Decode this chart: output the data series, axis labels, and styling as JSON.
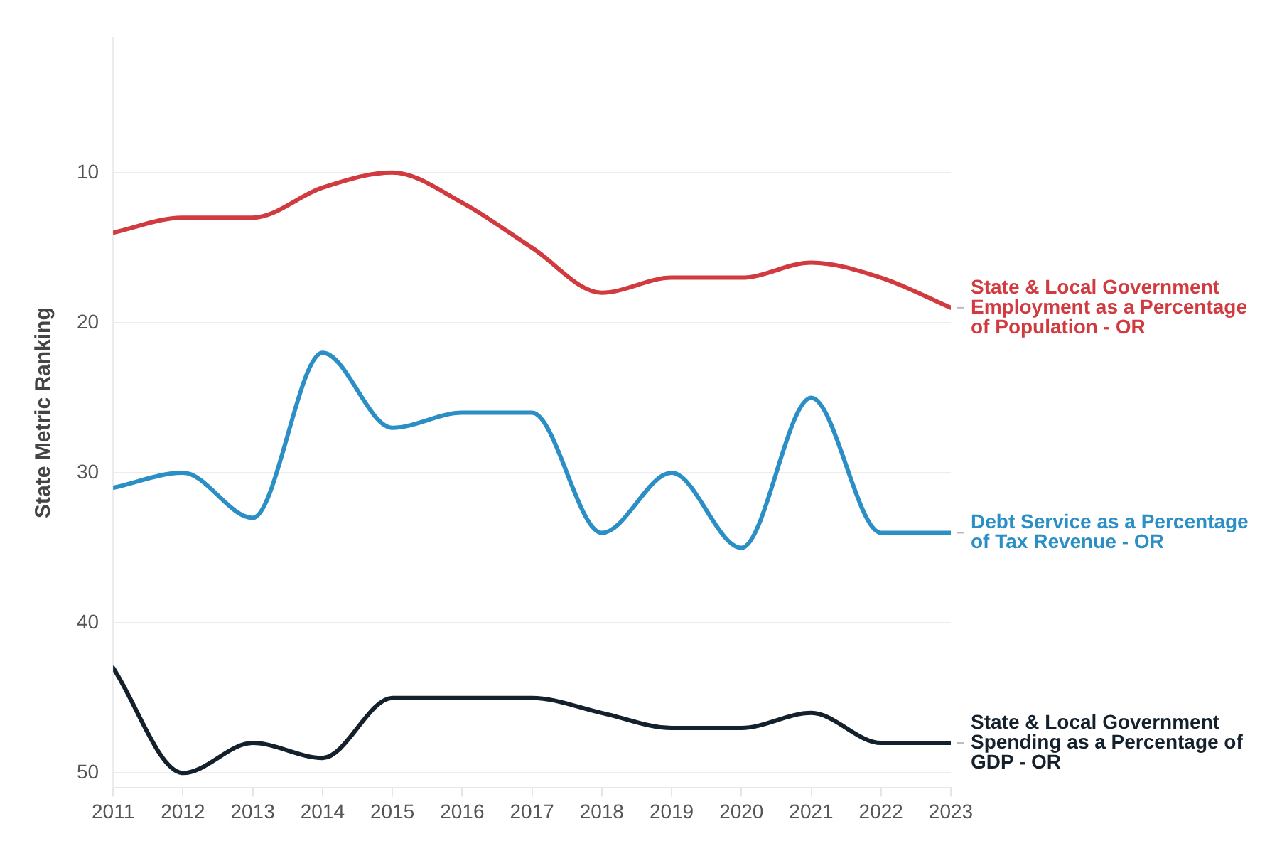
{
  "chart_data": {
    "type": "line",
    "ylabel": "State Metric Ranking",
    "x": [
      2011,
      2012,
      2013,
      2014,
      2015,
      2016,
      2017,
      2018,
      2019,
      2020,
      2021,
      2022,
      2023
    ],
    "xlim": [
      2011,
      2023
    ],
    "xticks": [
      2011,
      2012,
      2013,
      2014,
      2015,
      2016,
      2017,
      2018,
      2019,
      2020,
      2021,
      2022,
      2023
    ],
    "ylim": [
      51,
      1
    ],
    "yticks": [
      10,
      20,
      30,
      40,
      50
    ],
    "grid": "y",
    "legend": false,
    "marker": "none",
    "line_style": "solid",
    "series": [
      {
        "name": "State & Local Government Employment as a Percentage of Population - OR",
        "color": "#d13a3f",
        "values": [
          14,
          13,
          13,
          11,
          10,
          12,
          15,
          18,
          17,
          17,
          16,
          17,
          19
        ]
      },
      {
        "name": "Debt Service as a Percentage of Tax Revenue - OR",
        "color": "#2b8fc6",
        "values": [
          31,
          30,
          33,
          22,
          27,
          26,
          26,
          34,
          30,
          35,
          25,
          34,
          34
        ]
      },
      {
        "name": "State & Local Government Spending as a Percentage of GDP - OR",
        "color": "#14202b",
        "values": [
          43,
          50,
          48,
          49,
          45,
          45,
          45,
          46,
          47,
          47,
          46,
          48,
          48
        ]
      }
    ]
  }
}
